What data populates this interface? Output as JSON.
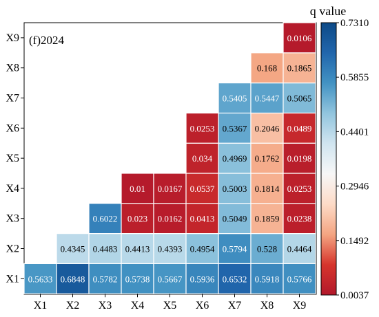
{
  "chart_data": {
    "type": "heatmap",
    "panel_label": "(f)2024",
    "rows": [
      "X1",
      "X2",
      "X3",
      "X4",
      "X5",
      "X6",
      "X7",
      "X8",
      "X9"
    ],
    "cols": [
      "X1",
      "X2",
      "X3",
      "X4",
      "X5",
      "X6",
      "X7",
      "X8",
      "X9"
    ],
    "cells": [
      {
        "row": "X1",
        "values": [
          "0.5633",
          "0.6848",
          "0.5782",
          "0.5738",
          "0.5667",
          "0.5936",
          "0.6532",
          "0.5918",
          "0.5766"
        ]
      },
      {
        "row": "X2",
        "values": [
          null,
          "0.4345",
          "0.4483",
          "0.4413",
          "0.4393",
          "0.4954",
          "0.5794",
          "0.528",
          "0.4464"
        ]
      },
      {
        "row": "X3",
        "values": [
          null,
          null,
          "0.6022",
          "0.023",
          "0.0162",
          "0.0413",
          "0.5049",
          "0.1859",
          "0.0238"
        ]
      },
      {
        "row": "X4",
        "values": [
          null,
          null,
          null,
          "0.01",
          "0.0167",
          "0.0537",
          "0.5003",
          "0.1814",
          "0.0253"
        ]
      },
      {
        "row": "X5",
        "values": [
          null,
          null,
          null,
          null,
          null,
          "0.034",
          "0.4969",
          "0.1762",
          "0.0198"
        ]
      },
      {
        "row": "X6",
        "values": [
          null,
          null,
          null,
          null,
          null,
          "0.0253",
          "0.5367",
          "0.2046",
          "0.0489"
        ]
      },
      {
        "row": "X7",
        "values": [
          null,
          null,
          null,
          null,
          null,
          null,
          "0.5405",
          "0.5447",
          "0.5065"
        ]
      },
      {
        "row": "X8",
        "values": [
          null,
          null,
          null,
          null,
          null,
          null,
          null,
          "0.168",
          "0.1865"
        ]
      },
      {
        "row": "X9",
        "values": [
          null,
          null,
          null,
          null,
          null,
          null,
          null,
          null,
          "0.0106"
        ]
      }
    ],
    "colorbar": {
      "title": "q value",
      "min": 0.0037,
      "max": 0.731,
      "ticks": [
        "0.7310",
        "0.5855",
        "0.4401",
        "0.2946",
        "0.1492",
        "0.0037"
      ],
      "colors": [
        "#b2182b",
        "#d6352c",
        "#f4a582",
        "#fddbc7",
        "#f7f7f7",
        "#d1e5f0",
        "#92c5de",
        "#4393c3",
        "#2166ac",
        "#0d4a87"
      ]
    }
  }
}
